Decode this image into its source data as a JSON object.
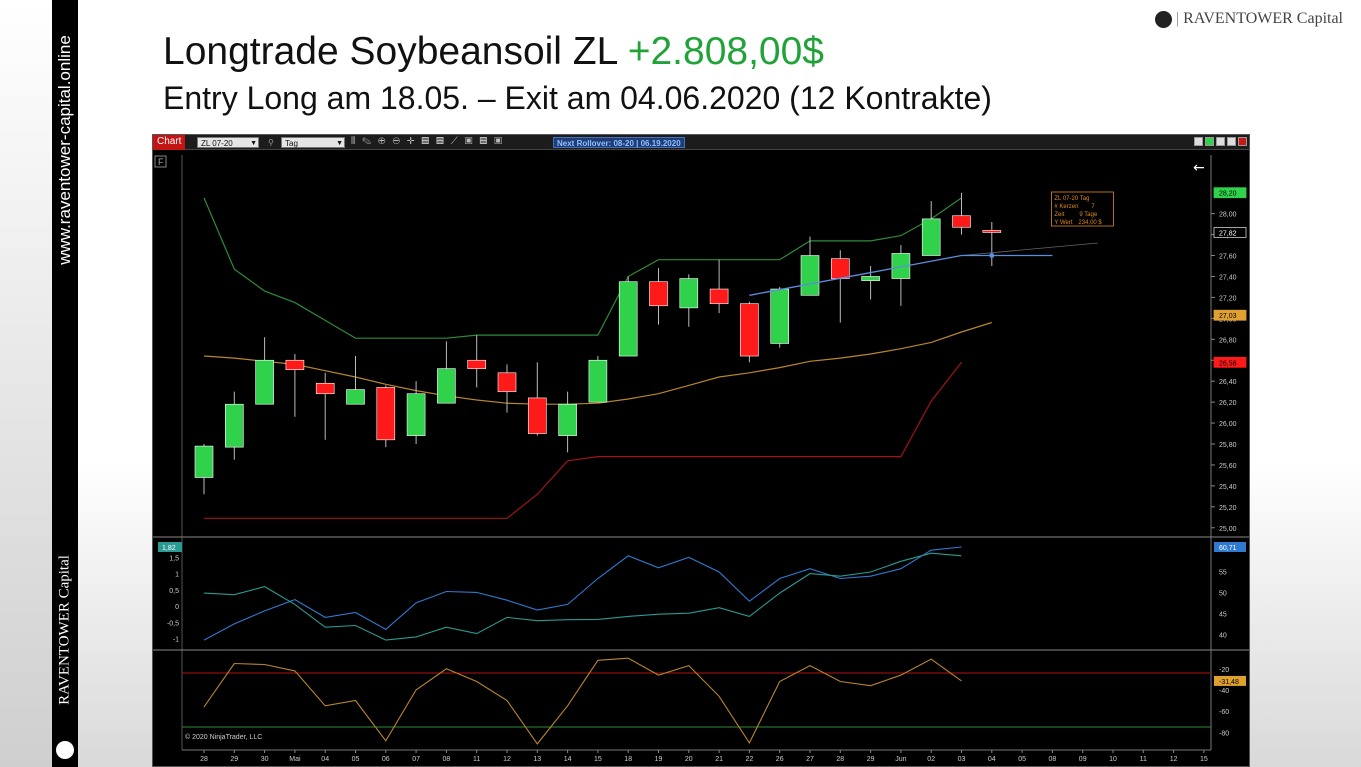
{
  "sidebar": {
    "url": "www.raventower-capital.online",
    "brand": "RAVENTOWER Capital"
  },
  "brand": {
    "separator": "|",
    "name": "RAVENTOWER Capital"
  },
  "header": {
    "title": "Longtrade Soybeansoil ZL",
    "profit": "+2.808,00$",
    "subtitle": "Entry Long am 18.05. – Exit am 04.06.2020 (12 Kontrakte)"
  },
  "toolbar": {
    "tab": "Chart",
    "instrument": "ZL 07-20",
    "period": "Tag",
    "rollover": "Next Rollover: 08-20 | 06.19.2020"
  },
  "colors": {
    "bull": "#2fd24a",
    "bear": "#ff1a1a",
    "upper_band": "#2e8b3a",
    "mid_band": "#b8862d",
    "lower_band": "#a01414",
    "trend_line": "#5a8fe0",
    "osc_a": "#2f7ad0",
    "osc_b": "#2a9a93",
    "osc2": "#b8862d"
  },
  "chart_data": [
    {
      "type": "candlestick",
      "instrument": "ZL 07-20",
      "period": "Tag",
      "x_labels": [
        "28",
        "29",
        "30",
        "Mai",
        "04",
        "05",
        "06",
        "07",
        "08",
        "11",
        "12",
        "13",
        "14",
        "15",
        "18",
        "19",
        "20",
        "21",
        "22",
        "26",
        "27",
        "28",
        "29",
        "Jun",
        "02",
        "03",
        "04",
        "05",
        "08",
        "09",
        "10",
        "11",
        "12",
        "15"
      ],
      "ylim": [
        24.95,
        28.35
      ],
      "y_ticks": [
        "28,00",
        "27,80",
        "27,60",
        "27,40",
        "27,20",
        "27,00",
        "26,80",
        "26,60",
        "26,40",
        "26,20",
        "26,00",
        "25,80",
        "25,60",
        "25,40",
        "25,20",
        "25,00"
      ],
      "candles": [
        {
          "o": 25.48,
          "h": 25.8,
          "l": 25.32,
          "c": 25.78
        },
        {
          "o": 25.77,
          "h": 26.3,
          "l": 25.65,
          "c": 26.18
        },
        {
          "o": 26.18,
          "h": 26.82,
          "l": 26.18,
          "c": 26.6
        },
        {
          "o": 26.6,
          "h": 26.66,
          "l": 26.06,
          "c": 26.51
        },
        {
          "o": 26.38,
          "h": 26.48,
          "l": 25.84,
          "c": 26.28
        },
        {
          "o": 26.18,
          "h": 26.64,
          "l": 26.18,
          "c": 26.32
        },
        {
          "o": 26.34,
          "h": 26.36,
          "l": 25.77,
          "c": 25.84
        },
        {
          "o": 25.88,
          "h": 26.4,
          "l": 25.8,
          "c": 26.28
        },
        {
          "o": 26.19,
          "h": 26.78,
          "l": 26.19,
          "c": 26.52
        },
        {
          "o": 26.6,
          "h": 26.84,
          "l": 26.34,
          "c": 26.52
        },
        {
          "o": 26.48,
          "h": 26.56,
          "l": 26.1,
          "c": 26.3
        },
        {
          "o": 26.24,
          "h": 26.58,
          "l": 25.88,
          "c": 25.9
        },
        {
          "o": 25.88,
          "h": 26.3,
          "l": 25.72,
          "c": 26.18
        },
        {
          "o": 26.2,
          "h": 26.64,
          "l": 26.2,
          "c": 26.6
        },
        {
          "o": 26.64,
          "h": 27.4,
          "l": 26.64,
          "c": 27.35
        },
        {
          "o": 27.35,
          "h": 27.48,
          "l": 26.94,
          "c": 27.12
        },
        {
          "o": 27.1,
          "h": 27.42,
          "l": 26.92,
          "c": 27.38
        },
        {
          "o": 27.28,
          "h": 27.56,
          "l": 27.05,
          "c": 27.14
        },
        {
          "o": 27.14,
          "h": 27.16,
          "l": 26.58,
          "c": 26.64
        },
        {
          "o": 26.76,
          "h": 27.3,
          "l": 26.72,
          "c": 27.28
        },
        {
          "o": 27.22,
          "h": 27.78,
          "l": 27.22,
          "c": 27.6
        },
        {
          "o": 27.57,
          "h": 27.65,
          "l": 26.96,
          "c": 27.38
        },
        {
          "o": 27.36,
          "h": 27.5,
          "l": 27.18,
          "c": 27.4
        },
        {
          "o": 27.38,
          "h": 27.7,
          "l": 27.12,
          "c": 27.62
        },
        {
          "o": 27.6,
          "h": 28.12,
          "l": 27.6,
          "c": 27.95
        },
        {
          "o": 27.98,
          "h": 28.2,
          "l": 27.8,
          "c": 27.87
        },
        {
          "o": 27.84,
          "h": 27.92,
          "l": 27.5,
          "c": 27.82
        }
      ],
      "upper_band": [
        28.15,
        27.47,
        27.26,
        27.15,
        26.98,
        26.81,
        26.81,
        26.81,
        26.81,
        26.84,
        26.84,
        26.84,
        26.84,
        26.84,
        27.4,
        27.56,
        27.56,
        27.56,
        27.56,
        27.56,
        27.74,
        27.74,
        27.74,
        27.79,
        27.95,
        28.15
      ],
      "mid_band": [
        26.64,
        26.62,
        26.59,
        26.56,
        26.5,
        26.44,
        26.37,
        26.31,
        26.26,
        26.22,
        26.19,
        26.18,
        26.18,
        26.19,
        26.23,
        26.28,
        26.36,
        26.44,
        26.48,
        26.53,
        26.59,
        26.62,
        26.66,
        26.71,
        26.77,
        26.87,
        26.96
      ],
      "lower_band": [
        25.09,
        25.09,
        25.09,
        25.09,
        25.09,
        25.09,
        25.09,
        25.09,
        25.09,
        25.09,
        25.09,
        25.32,
        25.64,
        25.68,
        25.68,
        25.68,
        25.68,
        25.68,
        25.68,
        25.68,
        25.68,
        25.68,
        25.68,
        25.68,
        26.21,
        26.58
      ],
      "entry_line": {
        "from_index": 18,
        "to_index": 25,
        "y_start": 27.22,
        "y_end": 27.6
      },
      "horizontal_line": {
        "from_index": 25,
        "to_index": 28,
        "y": 27.6
      },
      "price_labels": [
        {
          "text": "28,20",
          "y": 28.2,
          "color": "#2fd24a"
        },
        {
          "text": "27,82",
          "y": 27.82,
          "color": "#000000"
        },
        {
          "text": "27,03",
          "y": 27.03,
          "color": "#e0a030"
        },
        {
          "text": "26,58",
          "y": 26.58,
          "color": "#ff1a1a"
        }
      ],
      "info_box": {
        "line1": "ZL 07-20 Tag",
        "l2_label": "# Kerzen",
        "l2_value": "7",
        "l3_label": "Zeit",
        "l3_value": "9 Tage",
        "l4_label": "Y Wert",
        "l4_value": "234,00 $"
      },
      "copyright": "© 2020 NinjaTrader, LLC"
    },
    {
      "type": "line",
      "left_ticks": [
        "1,5",
        "1",
        "0,5",
        "0",
        "-0,5",
        "-1"
      ],
      "left_ylim": [
        -1.2,
        1.82
      ],
      "right_ticks": [
        "55",
        "50",
        "45",
        "40"
      ],
      "right_ylim": [
        37.5,
        60.8
      ],
      "left_label": "1,82",
      "right_label": "60,71",
      "series_a": [
        -1.05,
        -0.55,
        -0.15,
        0.2,
        -0.35,
        -0.2,
        -0.72,
        0.1,
        0.45,
        0.42,
        0.18,
        -0.12,
        0.05,
        0.85,
        1.55,
        1.18,
        1.5,
        1.05,
        0.15,
        0.85,
        1.15,
        0.85,
        0.92,
        1.15,
        1.72,
        1.82
      ],
      "series_b": [
        0.4,
        0.35,
        0.6,
        0.05,
        -0.65,
        -0.6,
        -1.05,
        -0.95,
        -0.65,
        -0.85,
        -0.35,
        -0.45,
        -0.42,
        -0.41,
        -0.32,
        -0.25,
        -0.22,
        -0.05,
        -0.32,
        0.4,
        1.0,
        0.92,
        1.05,
        1.38,
        1.63,
        1.55
      ]
    },
    {
      "type": "line",
      "right_ticks": [
        "-20",
        "-40",
        "-60",
        "-80"
      ],
      "ylim": [
        -92,
        -7
      ],
      "upper_level": -24,
      "lower_level": -75,
      "current_label": "-31,48",
      "series": [
        -56,
        -15,
        -16,
        -22,
        -55,
        -50,
        -88,
        -40,
        -20,
        -32,
        -50,
        -91,
        -55,
        -12,
        -10,
        -26,
        -17,
        -46,
        -90,
        -32,
        -17,
        -32,
        -36,
        -26,
        -11,
        -31.48
      ]
    }
  ]
}
